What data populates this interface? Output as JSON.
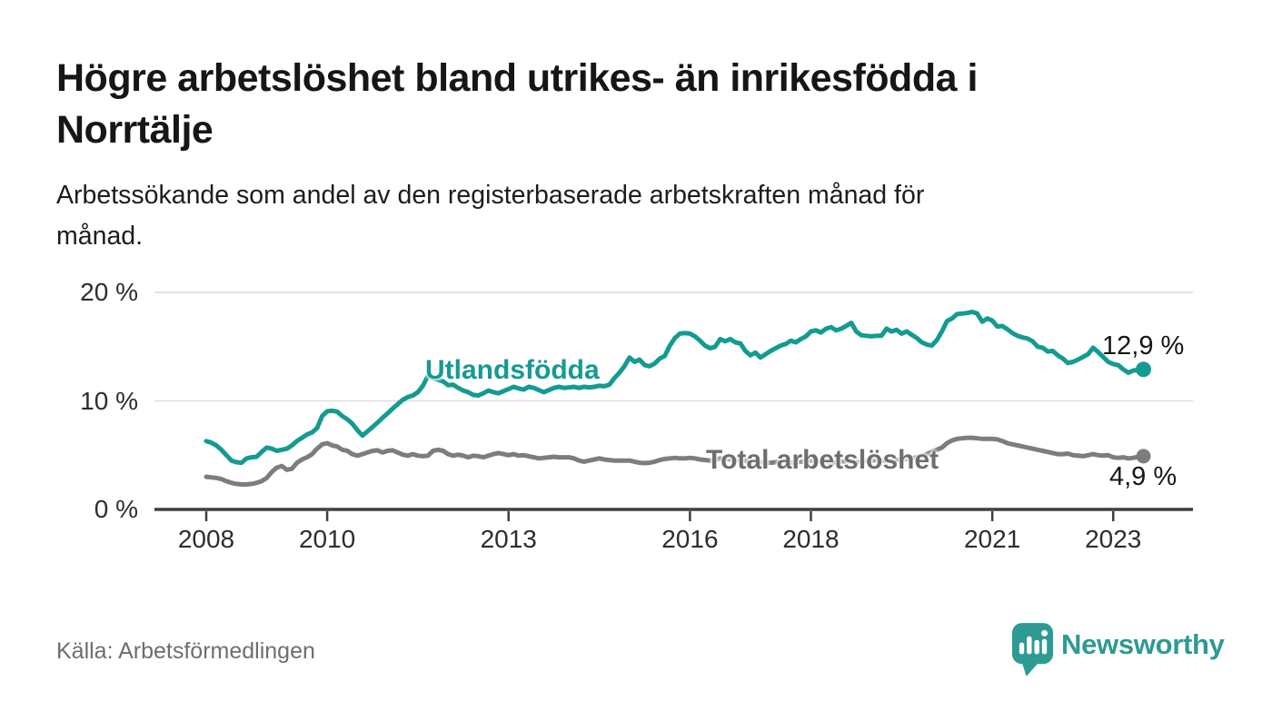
{
  "header": {
    "title_line1": "Högre arbetslöshet bland utrikes- än inrikesfödda i",
    "title_line2": "Norrtälje",
    "subtitle_line1": "Arbetssökande som andel av den registerbaserade arbetskraften månad för",
    "subtitle_line2": "månad."
  },
  "chart_data": {
    "type": "line",
    "unit": "percent of registered labour force",
    "frequency": "monthly",
    "x_start": {
      "year": 2008,
      "month": 1
    },
    "x_end": {
      "year": 2023,
      "month": 7
    },
    "points_per_year": 12,
    "ylim": [
      0,
      20
    ],
    "grid": "horizontal",
    "legend_position": "inline-labels",
    "y_ticks": [
      {
        "label": "0 %",
        "value": 0
      },
      {
        "label": "10 %",
        "value": 10
      },
      {
        "label": "20 %",
        "value": 20
      }
    ],
    "x_ticks": [
      {
        "label": "2008",
        "year": 2008
      },
      {
        "label": "2010",
        "year": 2010
      },
      {
        "label": "2013",
        "year": 2013
      },
      {
        "label": "2016",
        "year": 2016
      },
      {
        "label": "2018",
        "year": 2018
      },
      {
        "label": "2021",
        "year": 2021
      },
      {
        "label": "2023",
        "year": 2023
      }
    ],
    "series": [
      {
        "name": "Utlandsfödda",
        "color": "#149b91",
        "end_label": "12,9 %",
        "end_value": 12.9,
        "values": [
          6.3,
          6.15,
          5.9,
          5.5,
          5.0,
          4.5,
          4.35,
          4.3,
          4.7,
          4.8,
          4.85,
          5.3,
          5.7,
          5.6,
          5.4,
          5.5,
          5.6,
          5.9,
          6.3,
          6.6,
          6.9,
          7.1,
          7.5,
          8.6,
          9.05,
          9.1,
          9.0,
          8.6,
          8.3,
          7.9,
          7.3,
          6.8,
          7.2,
          7.6,
          8.0,
          8.45,
          8.85,
          9.3,
          9.7,
          10.1,
          10.35,
          10.5,
          10.8,
          11.4,
          12.3,
          12.1,
          11.95,
          11.8,
          11.45,
          11.5,
          11.2,
          10.95,
          10.8,
          10.55,
          10.5,
          10.7,
          10.95,
          10.8,
          10.7,
          10.9,
          11.1,
          11.3,
          11.15,
          11.05,
          11.3,
          11.2,
          11.0,
          10.8,
          11.0,
          11.2,
          11.3,
          11.2,
          11.25,
          11.3,
          11.2,
          11.3,
          11.25,
          11.3,
          11.4,
          11.35,
          11.5,
          12.1,
          12.6,
          13.2,
          14.0,
          13.6,
          13.8,
          13.3,
          13.2,
          13.45,
          13.9,
          14.15,
          15.1,
          15.8,
          16.2,
          16.25,
          16.2,
          15.95,
          15.55,
          15.1,
          14.85,
          15.0,
          15.7,
          15.5,
          15.7,
          15.4,
          15.3,
          14.6,
          14.2,
          14.45,
          14.0,
          14.3,
          14.6,
          14.85,
          15.1,
          15.25,
          15.55,
          15.4,
          15.7,
          15.95,
          16.4,
          16.5,
          16.3,
          16.65,
          16.8,
          16.5,
          16.65,
          16.9,
          17.2,
          16.4,
          16.05,
          16.0,
          15.95,
          16.0,
          16.0,
          16.65,
          16.4,
          16.55,
          16.2,
          16.4,
          16.1,
          15.8,
          15.4,
          15.2,
          15.1,
          15.6,
          16.4,
          17.35,
          17.6,
          18.0,
          18.05,
          18.1,
          18.2,
          18.05,
          17.3,
          17.6,
          17.4,
          16.85,
          16.9,
          16.6,
          16.25,
          16.0,
          15.85,
          15.75,
          15.5,
          15.0,
          14.9,
          14.55,
          14.6,
          14.2,
          13.9,
          13.5,
          13.6,
          13.8,
          14.05,
          14.3,
          14.9,
          14.5,
          14.05,
          13.6,
          13.4,
          13.3,
          12.9,
          12.6,
          12.8,
          12.85,
          12.9
        ]
      },
      {
        "name": "Total arbetslöshet",
        "color": "#7d7d7d",
        "end_label": "4,9 %",
        "end_value": 4.9,
        "values": [
          3.0,
          2.95,
          2.9,
          2.8,
          2.6,
          2.45,
          2.35,
          2.3,
          2.3,
          2.35,
          2.45,
          2.6,
          2.9,
          3.45,
          3.85,
          4.0,
          3.65,
          3.75,
          4.3,
          4.6,
          4.8,
          5.1,
          5.6,
          6.0,
          6.1,
          5.9,
          5.8,
          5.5,
          5.4,
          5.1,
          4.95,
          5.1,
          5.25,
          5.4,
          5.45,
          5.25,
          5.4,
          5.45,
          5.25,
          5.05,
          4.95,
          5.1,
          4.95,
          4.9,
          4.95,
          5.4,
          5.5,
          5.4,
          5.1,
          4.95,
          5.05,
          4.95,
          4.8,
          4.95,
          4.9,
          4.8,
          4.95,
          5.1,
          5.2,
          5.1,
          5.0,
          5.1,
          4.95,
          5.0,
          4.9,
          4.8,
          4.7,
          4.75,
          4.8,
          4.85,
          4.8,
          4.8,
          4.8,
          4.7,
          4.5,
          4.4,
          4.5,
          4.6,
          4.7,
          4.6,
          4.55,
          4.5,
          4.5,
          4.5,
          4.5,
          4.4,
          4.3,
          4.27,
          4.3,
          4.4,
          4.55,
          4.65,
          4.7,
          4.75,
          4.7,
          4.7,
          4.75,
          4.7,
          4.6,
          4.55,
          4.5,
          4.6,
          4.7,
          4.65,
          4.6,
          4.55,
          4.5,
          4.5,
          4.45,
          4.4,
          4.35,
          4.3,
          4.3,
          4.35,
          4.4,
          4.35,
          4.3,
          4.35,
          4.4,
          4.45,
          4.5,
          4.45,
          4.4,
          4.35,
          4.3,
          4.35,
          4.4,
          4.45,
          4.4,
          4.35,
          4.4,
          4.45,
          4.5,
          4.55,
          4.5,
          4.45,
          4.5,
          4.55,
          4.6,
          4.65,
          4.7,
          4.8,
          4.9,
          5.1,
          5.3,
          5.5,
          5.7,
          6.1,
          6.35,
          6.5,
          6.55,
          6.6,
          6.6,
          6.55,
          6.5,
          6.5,
          6.5,
          6.45,
          6.3,
          6.1,
          6.0,
          5.9,
          5.8,
          5.7,
          5.6,
          5.5,
          5.4,
          5.3,
          5.2,
          5.1,
          5.1,
          5.15,
          5.0,
          4.95,
          4.9,
          5.0,
          5.1,
          5.0,
          4.95,
          5.0,
          4.8,
          4.75,
          4.8,
          4.7,
          4.75,
          4.85,
          4.9
        ]
      }
    ]
  },
  "footer": {
    "source": "Källa: Arbetsförmedlingen",
    "brand": "Newsworthy"
  },
  "colors": {
    "accent_teal": "#149b91",
    "line_gray": "#7d7d7d",
    "brand_teal": "#2d9a93",
    "grid": "#dcdcdc",
    "axis": "#3f3f3f",
    "text_dark": "#161616",
    "text_axis": "#2d2d2d",
    "text_muted": "#6e6e6e"
  }
}
